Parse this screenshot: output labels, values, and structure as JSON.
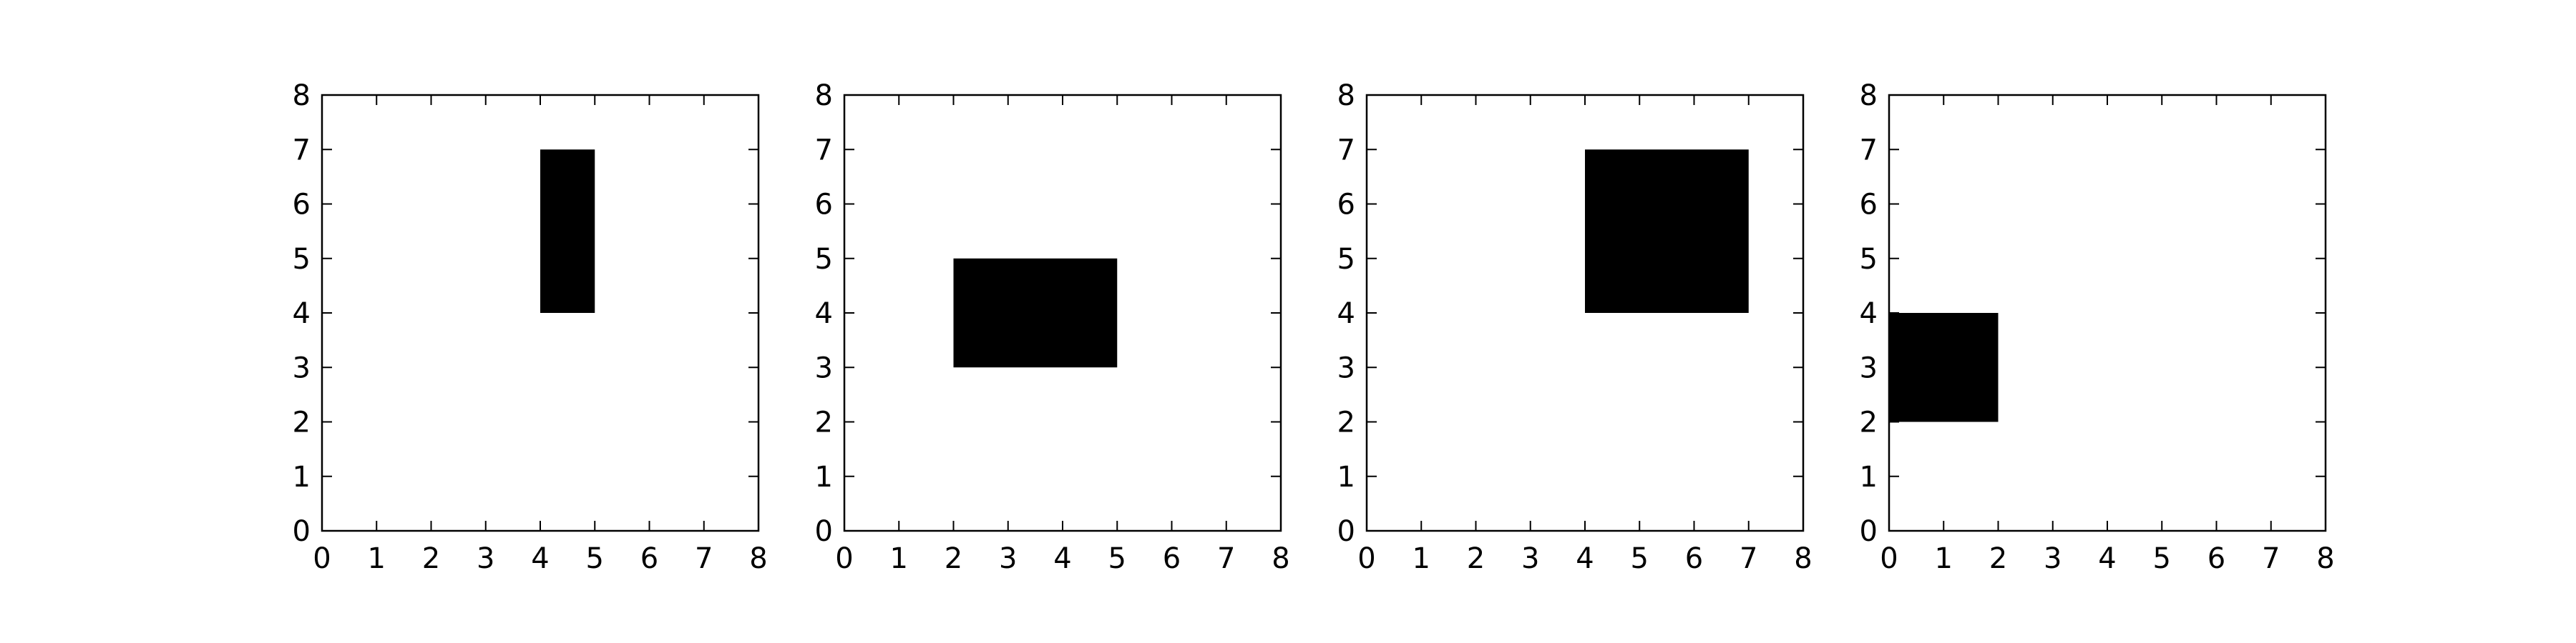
{
  "chart_data": [
    {
      "type": "heatmap",
      "xlim": [
        0,
        8
      ],
      "ylim": [
        0,
        8
      ],
      "x_ticks": [
        "0",
        "1",
        "2",
        "3",
        "4",
        "5",
        "6",
        "7",
        "8"
      ],
      "y_ticks": [
        "0",
        "1",
        "2",
        "3",
        "4",
        "5",
        "6",
        "7",
        "8"
      ],
      "grid": false,
      "background_color": "#ffffff",
      "cell_color": "#000000",
      "filled_block": {
        "x": [
          4,
          5
        ],
        "y": [
          4,
          7
        ]
      }
    },
    {
      "type": "heatmap",
      "xlim": [
        0,
        8
      ],
      "ylim": [
        0,
        8
      ],
      "x_ticks": [
        "0",
        "1",
        "2",
        "3",
        "4",
        "5",
        "6",
        "7",
        "8"
      ],
      "y_ticks": [
        "0",
        "1",
        "2",
        "3",
        "4",
        "5",
        "6",
        "7",
        "8"
      ],
      "grid": false,
      "background_color": "#ffffff",
      "cell_color": "#000000",
      "filled_block": {
        "x": [
          2,
          5
        ],
        "y": [
          3,
          5
        ]
      }
    },
    {
      "type": "heatmap",
      "xlim": [
        0,
        8
      ],
      "ylim": [
        0,
        8
      ],
      "x_ticks": [
        "0",
        "1",
        "2",
        "3",
        "4",
        "5",
        "6",
        "7",
        "8"
      ],
      "y_ticks": [
        "0",
        "1",
        "2",
        "3",
        "4",
        "5",
        "6",
        "7",
        "8"
      ],
      "grid": false,
      "background_color": "#ffffff",
      "cell_color": "#000000",
      "filled_block": {
        "x": [
          4,
          7
        ],
        "y": [
          4,
          7
        ]
      }
    },
    {
      "type": "heatmap",
      "xlim": [
        0,
        8
      ],
      "ylim": [
        0,
        8
      ],
      "x_ticks": [
        "0",
        "1",
        "2",
        "3",
        "4",
        "5",
        "6",
        "7",
        "8"
      ],
      "y_ticks": [
        "0",
        "1",
        "2",
        "3",
        "4",
        "5",
        "6",
        "7",
        "8"
      ],
      "grid": false,
      "background_color": "#ffffff",
      "cell_color": "#000000",
      "filled_block": {
        "x": [
          0,
          2
        ],
        "y": [
          2,
          4
        ]
      }
    }
  ]
}
